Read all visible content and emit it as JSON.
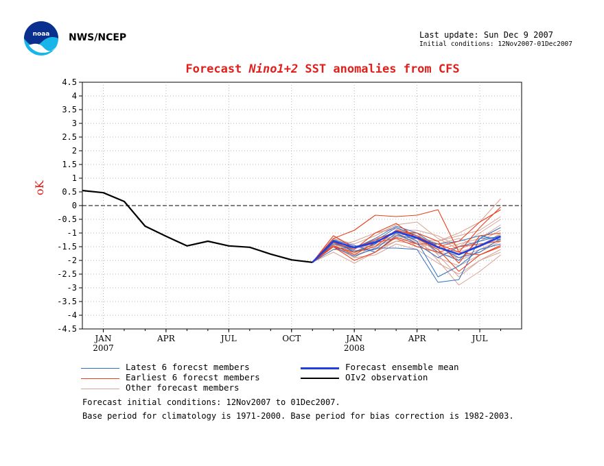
{
  "header": {
    "org": "NWS/NCEP",
    "last_update": "Last update: Sun Dec  9 2007",
    "initial_conditions": "Initial conditions: 12Nov2007-01Dec2007",
    "logo_text": "noaa"
  },
  "colors": {
    "latest": "#2f6fc4",
    "earliest": "#e8401c",
    "other": "#d9a394",
    "mean": "#1f3fe0",
    "observation": "#000000",
    "title": "#e0201c"
  },
  "chart_data": {
    "type": "line",
    "title_prefix": "Forecast ",
    "title_italic": "Nino1+2",
    "title_suffix": " SST anomalies from CFS",
    "ylabel": "oK",
    "ylim": [
      -4.5,
      4.5
    ],
    "yticks": [
      "4.5",
      "4",
      "3.5",
      "3",
      "2.5",
      "2",
      "1.5",
      "1",
      "0.5",
      "0",
      "-0.5",
      "-1",
      "-1.5",
      "-2",
      "-2.5",
      "-3",
      "-3.5",
      "-4",
      "-4.5"
    ],
    "xticks": [
      {
        "label": "JAN",
        "sub": "2007",
        "month": 1
      },
      {
        "label": "APR",
        "sub": "",
        "month": 4
      },
      {
        "label": "JUL",
        "sub": "",
        "month": 7
      },
      {
        "label": "OCT",
        "sub": "",
        "month": 10
      },
      {
        "label": "JAN",
        "sub": "2008",
        "month": 13
      },
      {
        "label": "APR",
        "sub": "",
        "month": 16
      },
      {
        "label": "JUL",
        "sub": "",
        "month": 19
      }
    ],
    "xlim": [
      0,
      21
    ],
    "grid": true,
    "observation": {
      "name": "OIv2 observation",
      "x": [
        0,
        1,
        2,
        3,
        4,
        5,
        6,
        7,
        8,
        9,
        10,
        11
      ],
      "y": [
        0.55,
        0.47,
        0.15,
        -0.75,
        -1.12,
        -1.47,
        -1.3,
        -1.47,
        -1.52,
        -1.77,
        -1.98,
        -2.07
      ]
    },
    "forecast_mean": {
      "name": "Forecast ensemble mean",
      "x": [
        11,
        12,
        13,
        14,
        15,
        16,
        17,
        18,
        19,
        20
      ],
      "y": [
        -2.07,
        -1.3,
        -1.53,
        -1.35,
        -0.95,
        -1.17,
        -1.52,
        -1.78,
        -1.47,
        -1.13
      ]
    },
    "latest_members": [
      [
        -2.07,
        -1.5,
        -1.85,
        -1.55,
        -1.55,
        -1.6,
        -2.8,
        -2.7,
        -1.2,
        -1.15
      ],
      [
        -2.07,
        -1.3,
        -1.7,
        -1.4,
        -0.9,
        -1.3,
        -2.6,
        -2.2,
        -1.6,
        -1.4
      ],
      [
        -2.07,
        -1.4,
        -1.55,
        -1.2,
        -0.75,
        -1.0,
        -1.5,
        -1.9,
        -1.7,
        -1.2
      ],
      [
        -2.07,
        -1.25,
        -1.45,
        -1.7,
        -1.1,
        -1.2,
        -1.4,
        -1.3,
        -1.1,
        -1.25
      ],
      [
        -2.07,
        -1.6,
        -1.5,
        -1.3,
        -0.8,
        -1.1,
        -1.7,
        -2.0,
        -1.2,
        -0.8
      ],
      [
        -2.07,
        -1.35,
        -1.65,
        -1.6,
        -1.0,
        -1.4,
        -1.9,
        -1.5,
        -1.3,
        -1.1
      ]
    ],
    "earliest_members": [
      [
        -2.07,
        -1.2,
        -0.9,
        -0.35,
        -0.4,
        -0.35,
        -0.15,
        -1.7,
        -0.8,
        -0.05
      ],
      [
        -2.07,
        -1.5,
        -1.7,
        -1.5,
        -0.9,
        -1.1,
        -1.5,
        -1.3,
        -0.6,
        -0.15
      ],
      [
        -2.07,
        -1.35,
        -1.6,
        -1.0,
        -0.65,
        -1.2,
        -1.6,
        -2.4,
        -1.8,
        -1.45
      ],
      [
        -2.07,
        -1.5,
        -2.0,
        -1.7,
        -1.15,
        -1.4,
        -1.4,
        -1.7,
        -1.8,
        -1.5
      ],
      [
        -2.07,
        -1.1,
        -1.55,
        -1.25,
        -0.95,
        -1.0,
        -1.3,
        -2.1,
        -1.1,
        -1.0
      ],
      [
        -2.07,
        -1.45,
        -1.8,
        -1.35,
        -1.2,
        -1.5,
        -1.7,
        -1.5,
        -1.4,
        -1.3
      ]
    ],
    "other_members": [
      [
        -2.07,
        -1.2,
        -1.6,
        -1.0,
        -0.8,
        -1.2,
        -1.3,
        -1.0,
        -0.6,
        0.25
      ],
      [
        -2.07,
        -1.4,
        -1.7,
        -1.5,
        -1.1,
        -1.0,
        -1.8,
        -2.6,
        -2.0,
        -1.6
      ],
      [
        -2.07,
        -1.6,
        -1.5,
        -1.3,
        -1.0,
        -1.5,
        -1.4,
        -1.2,
        -1.5,
        -1.2
      ],
      [
        -2.07,
        -1.3,
        -1.8,
        -1.6,
        -1.3,
        -1.2,
        -2.0,
        -2.9,
        -2.4,
        -1.8
      ],
      [
        -2.07,
        -1.5,
        -1.9,
        -1.4,
        -0.9,
        -0.9,
        -1.1,
        -1.5,
        -1.0,
        -0.5
      ],
      [
        -2.07,
        -1.2,
        -1.4,
        -1.1,
        -0.7,
        -0.6,
        -1.2,
        -1.6,
        -1.3,
        -0.9
      ],
      [
        -2.07,
        -1.7,
        -2.1,
        -1.7,
        -1.3,
        -1.4,
        -1.9,
        -2.2,
        -1.8,
        -1.5
      ],
      [
        -2.07,
        -1.4,
        -1.6,
        -1.2,
        -1.0,
        -1.3,
        -1.6,
        -1.4,
        -1.2,
        -0.7
      ],
      [
        -2.07,
        -1.1,
        -1.5,
        -1.5,
        -1.2,
        -1.1,
        -1.4,
        -2.0,
        -1.7,
        -1.3
      ],
      [
        -2.07,
        -1.5,
        -1.3,
        -1.0,
        -0.85,
        -1.2,
        -1.7,
        -1.8,
        -1.5,
        -1.0
      ],
      [
        -2.07,
        -1.3,
        -1.9,
        -1.8,
        -1.4,
        -1.6,
        -2.1,
        -2.5,
        -2.0,
        -1.7
      ],
      [
        -2.07,
        -1.6,
        -1.7,
        -1.3,
        -1.1,
        -1.0,
        -1.3,
        -1.1,
        -0.9,
        -0.4
      ],
      [
        -2.07,
        -1.25,
        -1.55,
        -1.45,
        -1.05,
        -1.35,
        -1.75,
        -1.9,
        -1.6,
        -1.25
      ],
      [
        -2.07,
        -1.45,
        -1.75,
        -1.25,
        -0.95,
        -1.15,
        -1.55,
        -1.7,
        -1.45,
        -1.05
      ]
    ],
    "legend": [
      {
        "label": "Latest 6 forecst members",
        "key": "latest"
      },
      {
        "label": "Forecast ensemble mean",
        "key": "mean"
      },
      {
        "label": "Earliest 6 forecst members",
        "key": "earliest"
      },
      {
        "label": "OIv2 observation",
        "key": "observation"
      },
      {
        "label": "Other forecast members",
        "key": "other"
      }
    ]
  },
  "notes": {
    "line1": "Forecast initial conditions: 12Nov2007 to 01Dec2007.",
    "line2": "Base period for climatology is 1971-2000. Base period for bias correction is 1982-2003."
  }
}
